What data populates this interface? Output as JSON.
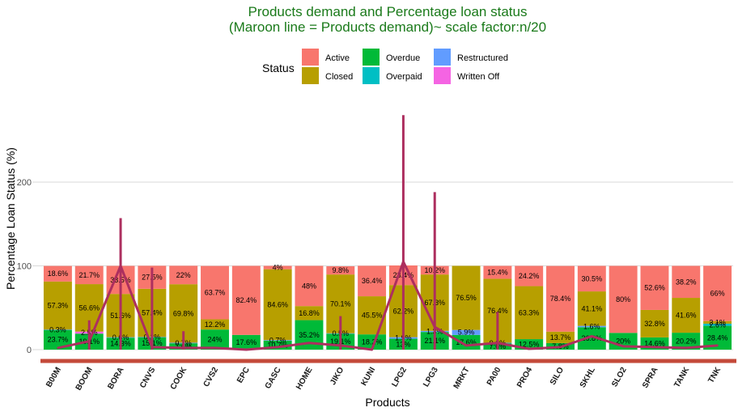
{
  "chart_data": {
    "type": "bar",
    "stacked": true,
    "title": "Products demand and Percentage loan status",
    "subtitle": "(Maroon line = Products demand)~ scale factor:n/20",
    "xlabel": "Products",
    "ylabel": "Percentage Loan Status (%)",
    "ylim": [
      -10,
      290
    ],
    "yticks": [
      0,
      100,
      200
    ],
    "grid": true,
    "legend": {
      "title": "Status",
      "placement": "top",
      "entries": [
        {
          "name": "Active",
          "color": "#F8766D"
        },
        {
          "name": "Closed",
          "color": "#B79F00"
        },
        {
          "name": "Overdue",
          "color": "#00BA38"
        },
        {
          "name": "Overpaid",
          "color": "#00BFC4"
        },
        {
          "name": "Restructured",
          "color": "#619CFF"
        },
        {
          "name": "Written Off",
          "color": "#F564E3"
        }
      ]
    },
    "stack_order": [
      "Overdue",
      "Overpaid",
      "Restructured",
      "Written Off",
      "Closed",
      "Active"
    ],
    "categories": [
      "B00M",
      "BOOM",
      "BORA",
      "CNVS",
      "COOK",
      "CVS2",
      "EPC",
      "GASC",
      "HOME",
      "JIKO",
      "KUNI",
      "LPG2",
      "LPG3",
      "MRKT",
      "PA00",
      "PRO4",
      "SILO",
      "SKHL",
      "SLO2",
      "SPRA",
      "TANK",
      "TNK"
    ],
    "series": [
      {
        "name": "Overdue",
        "values": [
          23.7,
          19.1,
          14.3,
          15.1,
          7.6,
          24,
          17.6,
          10.7,
          35.2,
          19.1,
          18.2,
          13,
          21.1,
          17.6,
          7.6,
          12.5,
          7.8,
          26.8,
          20,
          14.6,
          20.2,
          28.4
        ]
      },
      {
        "name": "Overpaid",
        "values": [
          0,
          0,
          0,
          0,
          0,
          0,
          0,
          0,
          0,
          0,
          0,
          0,
          0,
          0,
          0,
          0,
          0,
          0,
          0,
          0,
          0,
          2.6
        ]
      },
      {
        "name": "Restructured",
        "values": [
          0.3,
          0,
          0.6,
          0.1,
          0.7,
          0,
          0,
          0.7,
          0,
          0.5,
          0,
          1.9,
          1.3,
          5.9,
          0.6,
          0,
          0,
          1.6,
          0,
          0,
          0,
          0
        ]
      },
      {
        "name": "Written Off",
        "values": [
          0,
          2.5,
          0,
          0,
          0,
          0,
          0,
          0,
          0,
          0,
          0,
          0,
          0,
          0,
          0,
          0,
          0,
          0,
          0,
          0,
          0,
          0
        ]
      },
      {
        "name": "Closed",
        "values": [
          57.3,
          56.6,
          51.6,
          57.4,
          69.8,
          12.2,
          0,
          84.6,
          16.8,
          70.1,
          45.5,
          62.2,
          67.3,
          76.5,
          76.4,
          63.3,
          13.7,
          41.1,
          0,
          32.8,
          41.6,
          3.1
        ]
      },
      {
        "name": "Active",
        "values": [
          18.6,
          21.7,
          33.5,
          27.5,
          22,
          63.7,
          82.4,
          4,
          48,
          9.8,
          36.4,
          23.4,
          10.2,
          0,
          15.4,
          24.2,
          78.4,
          30.5,
          80,
          52.6,
          38.2,
          66
        ]
      }
    ],
    "labels": {
      "Overdue": [
        "23.7%",
        "19.1%",
        "14.3%",
        "15.1%",
        "7.6%",
        "24%",
        "17.6%",
        "10.7%",
        "35.2%",
        "19.1%",
        "18.2%",
        "13%",
        "21.1%",
        "17.6%",
        "7.6%",
        "12.5%",
        "7.8%",
        "26.8%",
        "20%",
        "14.6%",
        "20.2%",
        "28.4%"
      ],
      "Overpaid": [
        "",
        "",
        "",
        "",
        "",
        "",
        "",
        "",
        "",
        "",
        "",
        "",
        "",
        "",
        "",
        "",
        "",
        "",
        "",
        "",
        "",
        "2.6%"
      ],
      "Restructured": [
        "0.3%",
        "",
        "0.6%",
        "0.1%",
        "0.7%",
        "",
        "",
        "0.7%",
        "",
        "0.5%",
        "",
        "1.9%",
        "1.3%",
        "5.9%",
        "0.6%",
        "",
        "",
        "1.6%",
        "",
        "",
        "",
        ""
      ],
      "Written Off": [
        "",
        "2.5%",
        "",
        "",
        "",
        "",
        "",
        "",
        "",
        "",
        "",
        "",
        "",
        "",
        "",
        "",
        "",
        "",
        "",
        "",
        "",
        ""
      ],
      "Closed": [
        "57.3%",
        "56.6%",
        "51.6%",
        "57.4%",
        "69.8%",
        "12.2%",
        "",
        "84.6%",
        "16.8%",
        "70.1%",
        "45.5%",
        "62.2%",
        "67.3%",
        "76.5%",
        "76.4%",
        "63.3%",
        "13.7%",
        "41.1%",
        "",
        "32.8%",
        "41.6%",
        "3.1%"
      ],
      "Active": [
        "18.6%",
        "21.7%",
        "33.5%",
        "27.5%",
        "22%",
        "63.7%",
        "82.4%",
        "4%",
        "48%",
        "9.8%",
        "36.4%",
        "23.4%",
        "10.2%",
        "",
        "15.4%",
        "24.2%",
        "78.4%",
        "30.5%",
        "80%",
        "52.6%",
        "38.2%",
        "66%"
      ]
    },
    "demand_line": {
      "color": "#AD2F5F",
      "values": [
        2,
        10,
        100,
        3,
        2,
        2,
        0,
        3,
        8,
        5,
        0,
        105,
        27,
        5,
        8,
        1,
        3,
        16,
        4,
        3,
        2,
        5
      ]
    },
    "demand_spikes": {
      "color": "#AD2F5F",
      "values": [
        0,
        35,
        157,
        98,
        22,
        0,
        0,
        0,
        0,
        40,
        0,
        280,
        188,
        0,
        45,
        0,
        0,
        0,
        0,
        0,
        0,
        0
      ]
    },
    "baseline_color": "#C44A3A"
  }
}
